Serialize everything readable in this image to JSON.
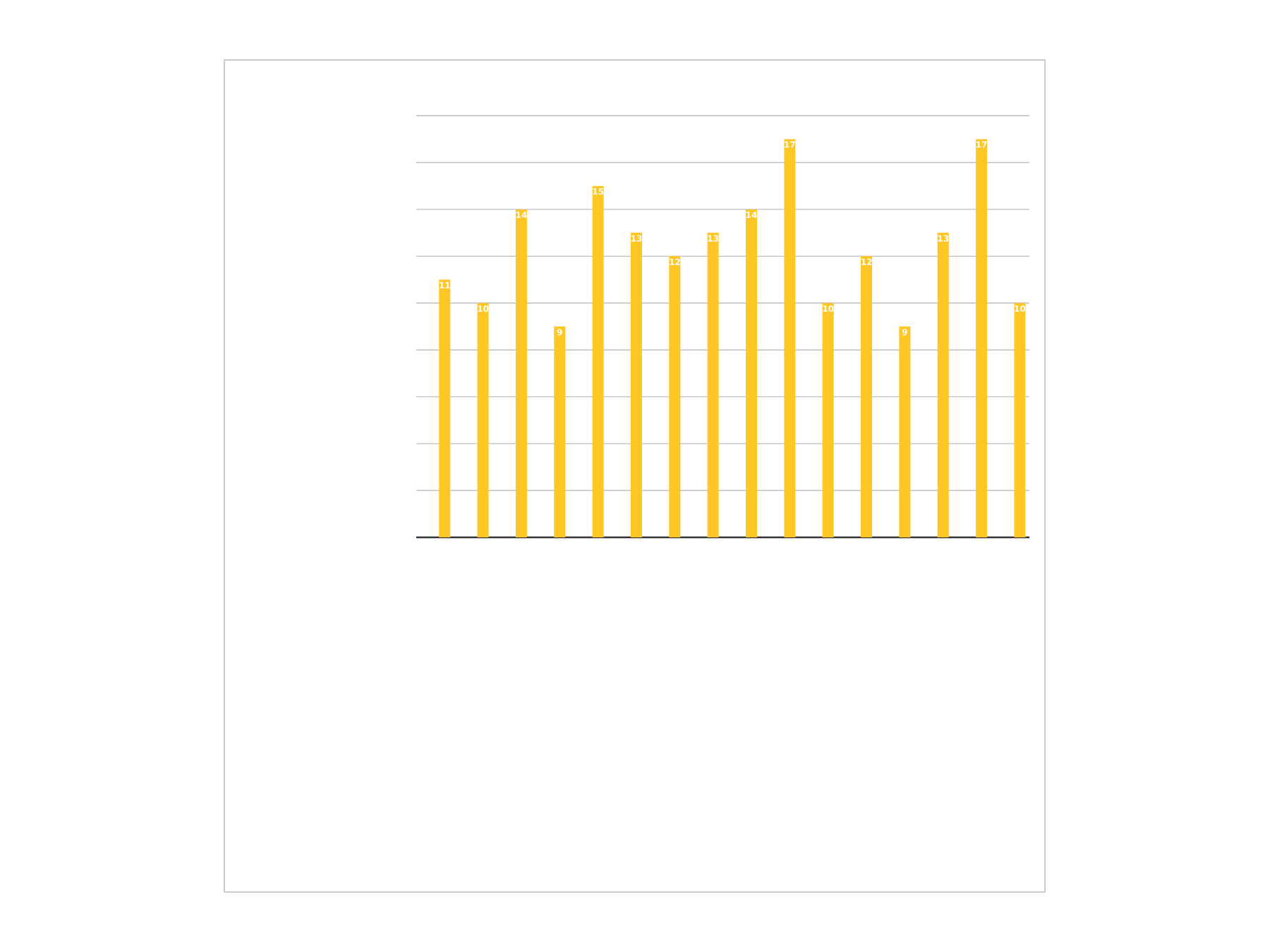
{
  "chart_data": {
    "type": "bar",
    "categories": [
      null,
      null,
      null,
      null,
      null,
      null,
      null,
      null,
      null,
      null,
      null,
      null,
      null,
      null,
      null,
      null
    ],
    "values": [
      11,
      10,
      14,
      9,
      15,
      13,
      12,
      13,
      14,
      17,
      10,
      12,
      9,
      13,
      17,
      10
    ],
    "color": "#ffc726",
    "ylim": [
      0,
      18
    ],
    "yticks": [
      {
        "value": 0,
        "label": null
      },
      {
        "value": 2,
        "label": null
      },
      {
        "value": 4,
        "label": null
      },
      {
        "value": 6,
        "label": null
      },
      {
        "value": 8,
        "label": null
      },
      {
        "value": 10,
        "label": null
      },
      {
        "value": 12,
        "label": null
      },
      {
        "value": 14,
        "label": null
      },
      {
        "value": 16,
        "label": null
      },
      {
        "value": 18,
        "label": null
      }
    ],
    "grid": "y",
    "data_labels": true
  }
}
